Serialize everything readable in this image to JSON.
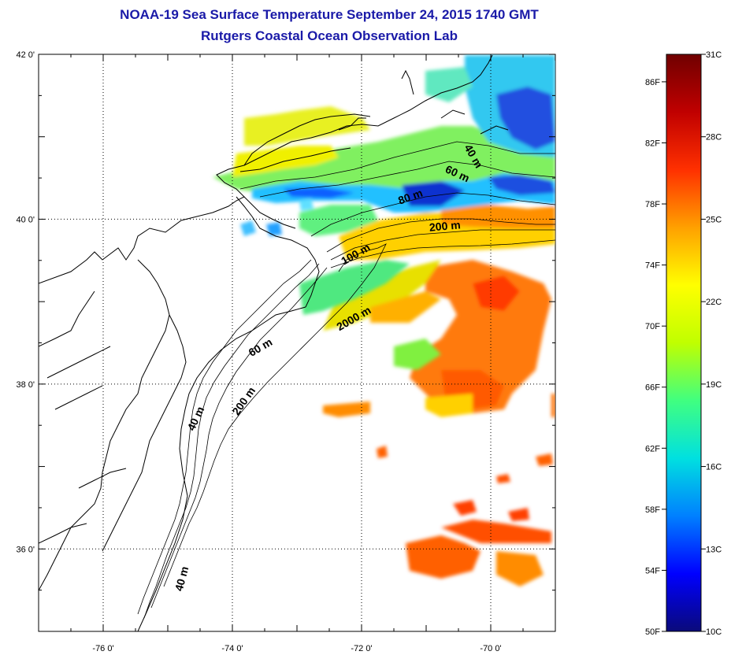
{
  "title": "NOAA-19 Sea Surface Temperature September 24, 2015 1740 GMT",
  "subtitle": "Rutgers Coastal Ocean Observation Lab",
  "map": {
    "lat_labels": [
      "42 0'",
      "40 0'",
      "38 0'",
      "36 0'"
    ],
    "lon_labels": [
      "-76 0'",
      "-74 0'",
      "-72 0'",
      "-70 0'"
    ],
    "lat_values": [
      42,
      40,
      38,
      36
    ],
    "lon_values": [
      -76,
      -74,
      -72,
      -70
    ],
    "lat_range": [
      35,
      42
    ],
    "lon_range": [
      -77,
      -69
    ],
    "gridlines": "dotted",
    "isobaths": [
      {
        "label": "40 m"
      },
      {
        "label": "60 m"
      },
      {
        "label": "80 m"
      },
      {
        "label": "200 m"
      },
      {
        "label": "100 m"
      },
      {
        "label": "2000 m"
      },
      {
        "label": "60 m"
      },
      {
        "label": "200 m"
      },
      {
        "label": "40 m"
      },
      {
        "label": "40 m"
      }
    ]
  },
  "colorbar": {
    "fahrenheit_labels": [
      "86F",
      "82F",
      "78F",
      "74F",
      "70F",
      "66F",
      "62F",
      "58F",
      "54F",
      "50F"
    ],
    "celsius_labels": [
      "31C",
      "28C",
      "25C",
      "22C",
      "19C",
      "16C",
      "13C",
      "10C"
    ],
    "celsius_range": [
      10,
      31
    ],
    "colors": [
      "#0a0a7a",
      "#0000ff",
      "#0080ff",
      "#00e0e0",
      "#40ff80",
      "#c0ff00",
      "#ffff00",
      "#ffa000",
      "#ff3000",
      "#c00000",
      "#700000"
    ]
  }
}
